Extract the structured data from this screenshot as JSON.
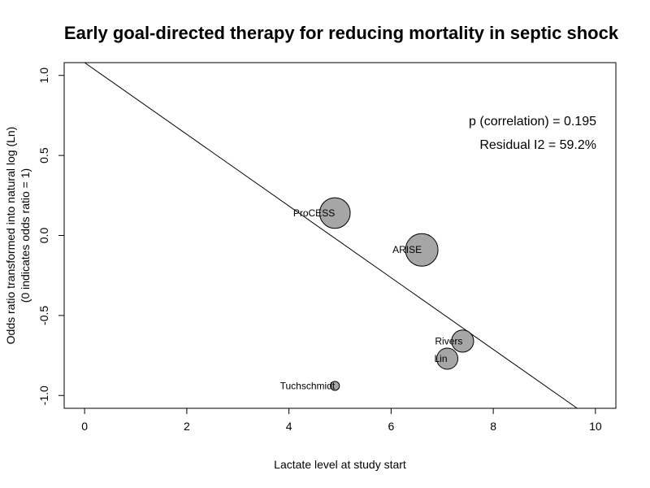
{
  "chart_data": {
    "type": "scatter",
    "title": "Early goal-directed therapy for reducing mortality in septic shock",
    "xlabel": "Lactate level at study start",
    "ylabel_line1": "Odds ratio transformed into natural log (Ln)",
    "ylabel_line2": "(0 indicates odds ratio = 1)",
    "xlim": [
      -0.4,
      10.4
    ],
    "ylim": [
      -1.08,
      1.08
    ],
    "x_ticks": [
      "0",
      "2",
      "4",
      "6",
      "8",
      "10"
    ],
    "x_tick_values": [
      0,
      2,
      4,
      6,
      8,
      10
    ],
    "y_ticks": [
      "-1.0",
      "-0.5",
      "0.0",
      "0.5",
      "1.0"
    ],
    "y_tick_values": [
      -1.0,
      -0.5,
      0.0,
      0.5,
      1.0
    ],
    "points": [
      {
        "label": "ProCESS",
        "x": 4.9,
        "y": 0.14,
        "weight": 0.23
      },
      {
        "label": "ARISE",
        "x": 6.6,
        "y": -0.09,
        "weight": 0.26
      },
      {
        "label": "Rivers",
        "x": 7.4,
        "y": -0.66,
        "weight": 0.12
      },
      {
        "label": "Lin",
        "x": 7.1,
        "y": -0.77,
        "weight": 0.11
      },
      {
        "label": "Tuchschmidt",
        "x": 4.9,
        "y": -0.94,
        "weight": 0.02
      }
    ],
    "regression_line": {
      "intercept": 1.08,
      "slope": -0.224
    },
    "annotations": [
      "p (correlation) = 0.195",
      "Residual I2 = 59.2%"
    ],
    "colors": {
      "point_fill": "#a6a6a6",
      "point_stroke": "#000000",
      "line": "#000000"
    },
    "grid": false
  }
}
